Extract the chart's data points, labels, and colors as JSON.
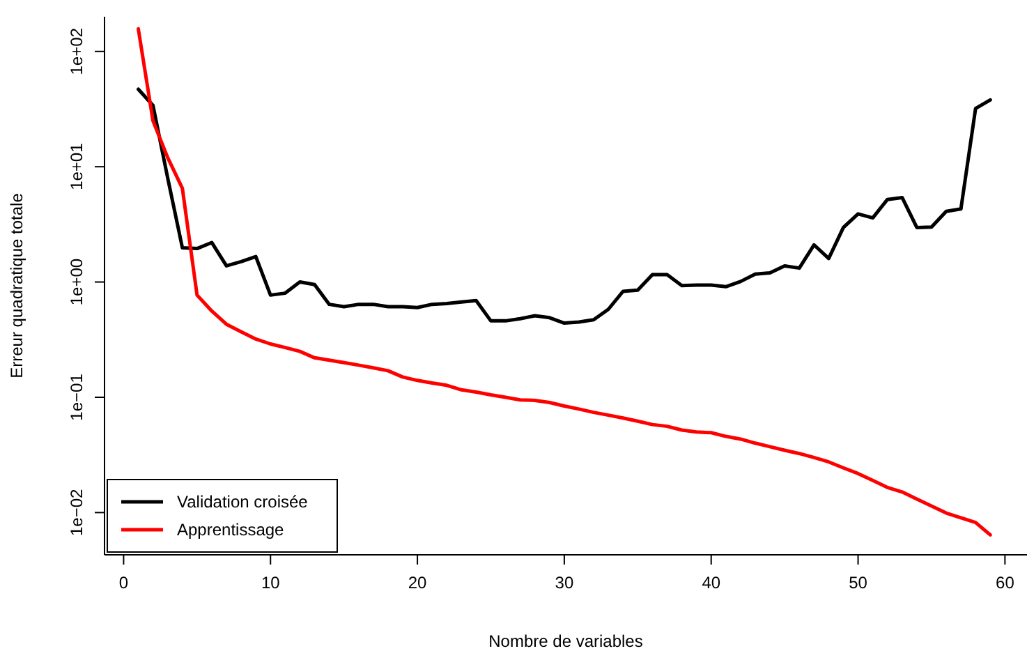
{
  "chart_data": {
    "type": "line",
    "xlabel": "Nombre de variables",
    "ylabel": "Erreur quadratique totale",
    "log": "y",
    "xlim": [
      -1.3,
      61.5
    ],
    "xticks": [
      0,
      10,
      20,
      30,
      40,
      50,
      60
    ],
    "ylim": [
      0.0043,
      200
    ],
    "yticks": [
      {
        "value": 0.01,
        "label": "1e−02"
      },
      {
        "value": 0.1,
        "label": "1e−01"
      },
      {
        "value": 1,
        "label": "1e+00"
      },
      {
        "value": 10,
        "label": "1e+01"
      },
      {
        "value": 100,
        "label": "1e+02"
      }
    ],
    "grid": false,
    "legend": "bottom left",
    "marker": "none",
    "line_style": "solid",
    "x": [
      1,
      2,
      3,
      4,
      5,
      6,
      7,
      8,
      9,
      10,
      11,
      12,
      13,
      14,
      15,
      16,
      17,
      18,
      19,
      20,
      21,
      22,
      23,
      24,
      25,
      26,
      27,
      28,
      29,
      30,
      31,
      32,
      33,
      34,
      35,
      36,
      37,
      38,
      39,
      40,
      41,
      42,
      43,
      44,
      45,
      46,
      47,
      48,
      49,
      50,
      51,
      52,
      53,
      54,
      55,
      56,
      57,
      58,
      59
    ],
    "series": [
      {
        "name": "Validation croisée",
        "color": "#000000",
        "values": [
          47,
          34,
          8,
          1.98,
          1.95,
          2.2,
          1.38,
          1.5,
          1.66,
          0.77,
          0.8,
          1.0,
          0.95,
          0.64,
          0.61,
          0.64,
          0.64,
          0.61,
          0.61,
          0.6,
          0.64,
          0.65,
          0.67,
          0.69,
          0.46,
          0.46,
          0.48,
          0.51,
          0.49,
          0.44,
          0.45,
          0.47,
          0.58,
          0.83,
          0.85,
          1.16,
          1.16,
          0.93,
          0.94,
          0.94,
          0.91,
          1.01,
          1.17,
          1.2,
          1.38,
          1.32,
          2.1,
          1.6,
          2.97,
          3.9,
          3.6,
          5.2,
          5.4,
          2.97,
          3.0,
          4.1,
          4.3,
          32,
          38
        ]
      },
      {
        "name": "Apprentissage",
        "color": "#ff0000",
        "values": [
          157,
          25,
          12,
          6.5,
          0.77,
          0.56,
          0.43,
          0.37,
          0.32,
          0.29,
          0.27,
          0.25,
          0.22,
          0.21,
          0.2,
          0.19,
          0.18,
          0.17,
          0.15,
          0.14,
          0.133,
          0.127,
          0.116,
          0.111,
          0.105,
          0.1,
          0.095,
          0.094,
          0.09,
          0.084,
          0.079,
          0.074,
          0.07,
          0.066,
          0.062,
          0.058,
          0.056,
          0.052,
          0.05,
          0.0493,
          0.0458,
          0.0434,
          0.04,
          0.0373,
          0.0347,
          0.0325,
          0.03,
          0.0275,
          0.0244,
          0.0218,
          0.019,
          0.0165,
          0.0151,
          0.0131,
          0.0114,
          0.0099,
          0.009,
          0.0082,
          0.0064
        ]
      }
    ]
  }
}
